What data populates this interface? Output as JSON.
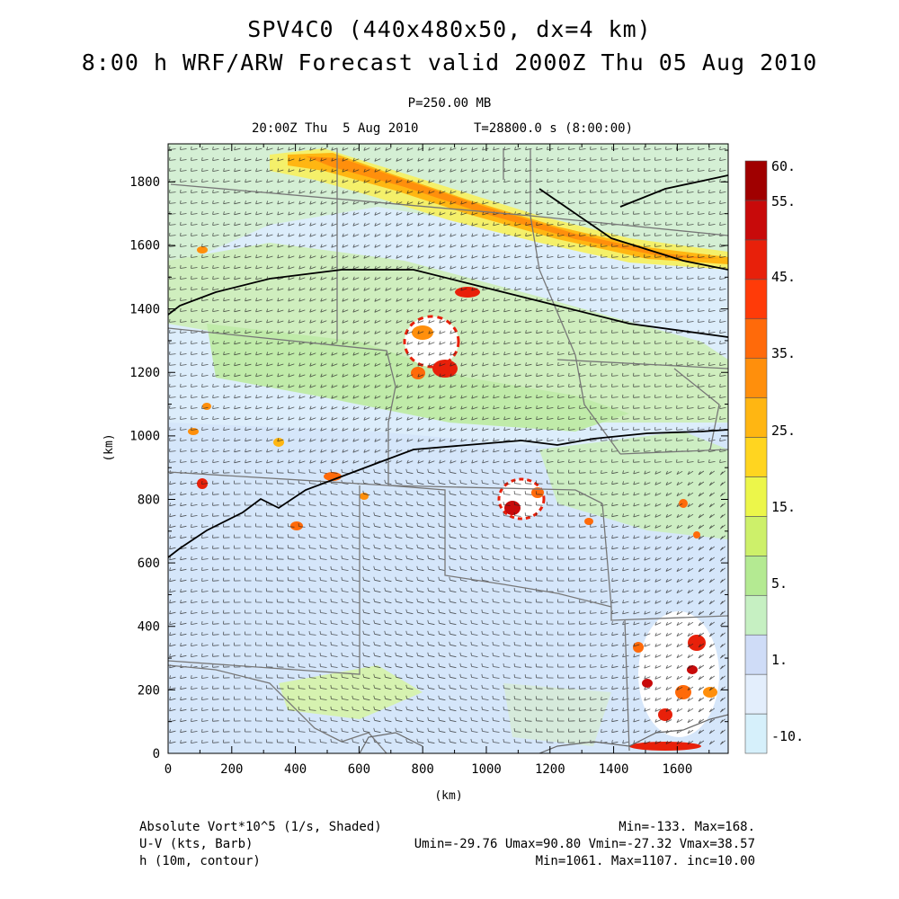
{
  "header": {
    "title_line1": "SPV4C0 (440x480x50, dx=4 km)",
    "title_line2": "8:00 h WRF/ARW Forecast valid 2000Z Thu 05 Aug 2010",
    "level": "P=250.00 MB",
    "valid_time": "20:00Z Thu  5 Aug 2010",
    "sim_time": "T=28800.0 s (8:00:00)"
  },
  "axes": {
    "x_ticks": [
      "0",
      "200",
      "400",
      "600",
      "800",
      "1000",
      "1200",
      "1400",
      "1600"
    ],
    "y_ticks": [
      "0",
      "200",
      "400",
      "600",
      "800",
      "1000",
      "1200",
      "1400",
      "1600",
      "1800"
    ],
    "x_label": "(km)",
    "y_label": "(km)",
    "x_range": [
      0,
      1760
    ],
    "y_range": [
      0,
      1920
    ]
  },
  "colorbar": {
    "labels": [
      "60.",
      "55.",
      "45.",
      "35.",
      "25.",
      "15.",
      "5.",
      "1.",
      "-10."
    ],
    "colors": [
      "#d6f0fb",
      "#e3eefc",
      "#cfdcf7",
      "#c6f0c2",
      "#b4ea92",
      "#cdf06a",
      "#ecf64a",
      "#ffd520",
      "#ffb612",
      "#ff8f0c",
      "#ff6a0a",
      "#ff3b08",
      "#e8200a",
      "#c80a0a",
      "#a00000"
    ]
  },
  "footer": {
    "field1_name": "Absolute Vort*10^5 (1/s, Shaded)",
    "field1_stats": "Min=-133. Max=168.",
    "field2_name": "U-V (kts, Barb)",
    "field2_stats": "Umin=-29.76 Umax=90.80 Vmin=-27.32 Vmax=38.57",
    "field3_name": "h (10m, contour)",
    "field3_stats": "Min=1061. Max=1107. inc=10.00"
  }
}
